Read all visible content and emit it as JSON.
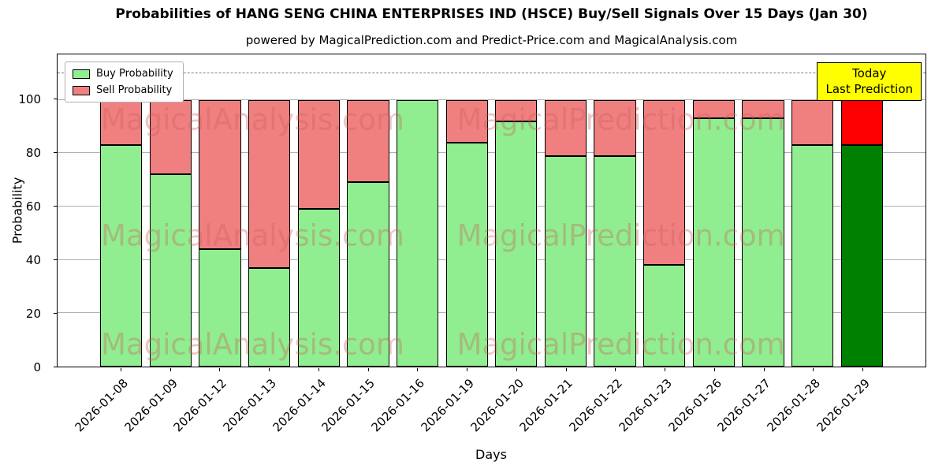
{
  "title": "Probabilities of HANG SENG CHINA ENTERPRISES IND (HSCE) Buy/Sell Signals Over 15 Days (Jan 30)",
  "subtitle": "powered by MagicalPrediction.com and Predict-Price.com and MagicalAnalysis.com",
  "legend": {
    "items": [
      {
        "label": "Buy Probability",
        "color": "#90EE90"
      },
      {
        "label": "Sell Probability",
        "color": "#F08080"
      }
    ]
  },
  "annotation": {
    "line1": "Today",
    "line2": "Last Prediction",
    "bg": "#FFFF00"
  },
  "watermarks": [
    "MagicalAnalysis.com",
    "MagicalPrediction.com"
  ],
  "chart_data": {
    "type": "bar",
    "stacked": true,
    "title": "Probabilities of HANG SENG CHINA ENTERPRISES IND (HSCE) Buy/Sell Signals Over 15 Days (Jan 30)",
    "xlabel": "Days",
    "ylabel": "Probability",
    "categories": [
      "2026-01-08",
      "2026-01-09",
      "2026-01-12",
      "2026-01-13",
      "2026-01-14",
      "2026-01-15",
      "2026-01-16",
      "2026-01-19",
      "2026-01-20",
      "2026-01-21",
      "2026-01-22",
      "2026-01-23",
      "2026-01-26",
      "2026-01-27",
      "2026-01-28",
      "2026-01-29"
    ],
    "series": [
      {
        "name": "Buy Probability",
        "color": "#90EE90",
        "values": [
          83,
          72,
          44,
          37,
          59,
          69,
          100,
          84,
          92,
          79,
          79,
          38,
          93,
          93,
          83,
          83
        ]
      },
      {
        "name": "Sell Probability",
        "color": "#F08080",
        "values": [
          17,
          28,
          56,
          63,
          41,
          31,
          0,
          16,
          8,
          21,
          21,
          62,
          7,
          7,
          17,
          17
        ]
      }
    ],
    "today_colors": {
      "buy": "#008000",
      "sell": "#FF0000"
    },
    "ylim": [
      0,
      117
    ],
    "yticks": [
      0,
      20,
      40,
      60,
      80,
      100
    ],
    "dashed_line_y": 110,
    "grid": "horizontal",
    "legend_position": "upper-left"
  }
}
